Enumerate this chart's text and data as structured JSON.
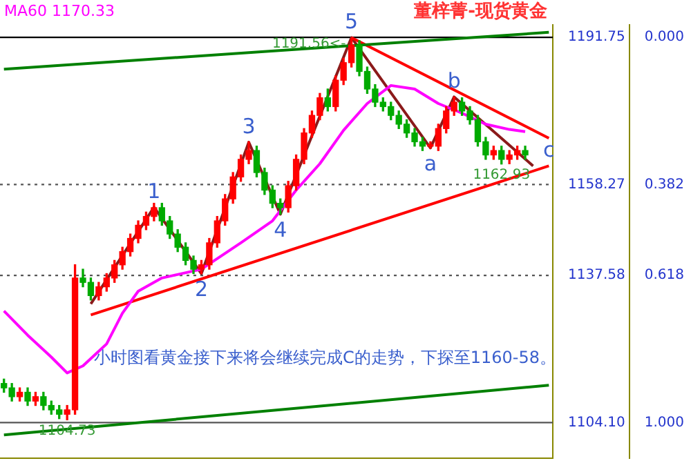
{
  "chart_data": {
    "type": "candlestick",
    "title": "董梓菁-现货黄金",
    "categories": [
      null,
      null,
      null,
      null,
      null,
      null,
      null,
      null,
      null,
      null,
      null,
      null,
      null,
      null,
      null,
      null,
      null,
      null,
      null,
      null,
      null,
      null,
      null,
      null,
      null,
      null,
      null,
      null,
      null,
      null,
      null,
      null,
      null,
      null,
      null,
      null,
      null,
      null,
      null,
      null,
      null,
      null,
      null,
      null,
      null,
      null,
      null,
      null,
      null,
      null,
      null,
      null,
      null,
      null,
      null,
      null,
      null,
      null,
      null,
      null,
      null,
      null,
      null,
      null,
      null,
      null,
      null,
      null,
      null,
      null
    ],
    "ohlc": [
      [
        1113,
        1114,
        1111,
        1112
      ],
      [
        1112,
        1113,
        1109,
        1110
      ],
      [
        1110,
        1112,
        1109,
        1111
      ],
      [
        1111,
        1112,
        1108,
        1109
      ],
      [
        1109,
        1111,
        1108,
        1110
      ],
      [
        1110,
        1111,
        1107,
        1108
      ],
      [
        1108,
        1109,
        1106,
        1107
      ],
      [
        1107,
        1108,
        1105,
        1106
      ],
      [
        1106,
        1108,
        1104.73,
        1107
      ],
      [
        1107,
        1140,
        1106,
        1137
      ],
      [
        1137,
        1139,
        1135,
        1136
      ],
      [
        1136,
        1137,
        1132,
        1133
      ],
      [
        1133,
        1136,
        1132,
        1135
      ],
      [
        1135,
        1138,
        1134,
        1137
      ],
      [
        1137,
        1141,
        1136,
        1140
      ],
      [
        1140,
        1144,
        1139,
        1143
      ],
      [
        1143,
        1147,
        1142,
        1146
      ],
      [
        1146,
        1150,
        1145,
        1149
      ],
      [
        1149,
        1152,
        1148,
        1151
      ],
      [
        1151,
        1154,
        1150,
        1153
      ],
      [
        1153,
        1154,
        1149,
        1150
      ],
      [
        1150,
        1151,
        1146,
        1147
      ],
      [
        1147,
        1148,
        1143,
        1144
      ],
      [
        1144,
        1145,
        1140,
        1141
      ],
      [
        1141,
        1142,
        1138,
        1139
      ],
      [
        1139,
        1141,
        1138,
        1140
      ],
      [
        1140,
        1146,
        1139,
        1145
      ],
      [
        1145,
        1151,
        1144,
        1150
      ],
      [
        1150,
        1156,
        1149,
        1155
      ],
      [
        1155,
        1161,
        1154,
        1160
      ],
      [
        1160,
        1165,
        1159,
        1164
      ],
      [
        1164,
        1168,
        1163,
        1166
      ],
      [
        1166,
        1167,
        1160,
        1161
      ],
      [
        1161,
        1162,
        1156,
        1157
      ],
      [
        1157,
        1158,
        1153,
        1154
      ],
      [
        1154,
        1155,
        1151.5,
        1153
      ],
      [
        1153,
        1159,
        1152,
        1158
      ],
      [
        1158,
        1165,
        1157,
        1164
      ],
      [
        1164,
        1171,
        1163,
        1170
      ],
      [
        1170,
        1175,
        1169,
        1174
      ],
      [
        1174,
        1179,
        1173,
        1178
      ],
      [
        1178,
        1180,
        1175,
        1176
      ],
      [
        1176,
        1183,
        1175,
        1182
      ],
      [
        1182,
        1187,
        1181,
        1186
      ],
      [
        1186,
        1191.56,
        1185,
        1190
      ],
      [
        1190,
        1191,
        1183,
        1184
      ],
      [
        1184,
        1185,
        1179,
        1180
      ],
      [
        1180,
        1181,
        1176,
        1177
      ],
      [
        1177,
        1178,
        1175,
        1176
      ],
      [
        1176,
        1177,
        1173,
        1174
      ],
      [
        1174,
        1175,
        1171,
        1172
      ],
      [
        1172,
        1173,
        1169,
        1170
      ],
      [
        1170,
        1171,
        1167,
        1168
      ],
      [
        1168,
        1169,
        1166,
        1167
      ],
      [
        1167,
        1168,
        1166.5,
        1167
      ],
      [
        1167,
        1172,
        1166,
        1171
      ],
      [
        1171,
        1176,
        1170,
        1175
      ],
      [
        1175,
        1178.2,
        1174,
        1177
      ],
      [
        1177,
        1178,
        1174,
        1175
      ],
      [
        1175,
        1176,
        1172,
        1173
      ],
      [
        1173,
        1174,
        1167,
        1168
      ],
      [
        1168,
        1169,
        1164,
        1165
      ],
      [
        1165,
        1167,
        1164,
        1166
      ],
      [
        1166,
        1167,
        1162.93,
        1164
      ],
      [
        1164,
        1166,
        1163,
        1165
      ],
      [
        1165,
        1167,
        1164,
        1166
      ],
      [
        1166,
        1167,
        1164,
        1165
      ],
      null,
      null,
      null
    ],
    "colors": [
      "#00aa00",
      "#00aa00",
      "#ff0000",
      "#00aa00",
      "#ff0000",
      "#00aa00",
      "#00aa00",
      "#00aa00",
      "#ff0000",
      "#ff0000",
      "#00aa00",
      "#00aa00",
      "#ff0000",
      "#ff0000",
      "#ff0000",
      "#ff0000",
      "#ff0000",
      "#ff0000",
      "#ff0000",
      "#ff0000",
      "#00aa00",
      "#00aa00",
      "#00aa00",
      "#00aa00",
      "#00aa00",
      "#ff0000",
      "#ff0000",
      "#ff0000",
      "#ff0000",
      "#ff0000",
      "#ff0000",
      "#ff0000",
      "#00aa00",
      "#00aa00",
      "#00aa00",
      "#00aa00",
      "#ff0000",
      "#ff0000",
      "#ff0000",
      "#ff0000",
      "#ff0000",
      "#00aa00",
      "#ff0000",
      "#ff0000",
      "#ff0000",
      "#00aa00",
      "#00aa00",
      "#00aa00",
      "#00aa00",
      "#00aa00",
      "#00aa00",
      "#00aa00",
      "#00aa00",
      "#00aa00",
      "#ff0000",
      "#ff0000",
      "#ff0000",
      "#ff0000",
      "#00aa00",
      "#00aa00",
      "#00aa00",
      "#00aa00",
      "#ff0000",
      "#00aa00",
      "#ff0000",
      "#ff0000",
      "#00aa00",
      null,
      null,
      null
    ],
    "value_labels": [
      null,
      null,
      null,
      null,
      null,
      null,
      null,
      null,
      "1104.73",
      null,
      null,
      null,
      null,
      null,
      null,
      null,
      null,
      null,
      null,
      null,
      null,
      null,
      null,
      null,
      null,
      null,
      null,
      null,
      null,
      null,
      null,
      null,
      null,
      null,
      null,
      null,
      null,
      null,
      null,
      null,
      null,
      null,
      null,
      null,
      "1191.56<-",
      null,
      null,
      null,
      null,
      null,
      null,
      null,
      null,
      null,
      null,
      null,
      null,
      null,
      null,
      null,
      null,
      null,
      null,
      "1162.93",
      null,
      null,
      null,
      null,
      null,
      null
    ],
    "series": [
      {
        "type": "line",
        "name": "MA60 1170.33",
        "color": "#ff00ff",
        "values": [
          1129.5,
          null,
          null,
          1124,
          null,
          null,
          1119,
          null,
          1115.4,
          null,
          1117,
          null,
          null,
          1122,
          null,
          1129,
          null,
          1134,
          null,
          null,
          1137,
          null,
          null,
          null,
          null,
          1139,
          null,
          null,
          null,
          null,
          1145,
          null,
          null,
          null,
          1150,
          null,
          null,
          1157,
          null,
          null,
          1163,
          null,
          null,
          1170.6,
          null,
          null,
          1176.7,
          null,
          null,
          1180.8,
          null,
          null,
          1180,
          null,
          null,
          1176.7,
          null,
          null,
          1174.5,
          null,
          null,
          1172,
          null,
          null,
          1170.8,
          null,
          1170.3,
          null,
          null,
          null
        ]
      },
      {
        "type": "line",
        "color": "#008000",
        "values": [
          1184.5,
          null,
          null,
          null,
          null,
          null,
          null,
          null,
          null,
          null,
          null,
          null,
          null,
          null,
          null,
          null,
          null,
          null,
          null,
          null,
          null,
          null,
          null,
          null,
          null,
          null,
          null,
          null,
          null,
          null,
          null,
          null,
          null,
          null,
          null,
          null,
          null,
          null,
          null,
          null,
          null,
          null,
          null,
          null,
          null,
          null,
          null,
          null,
          null,
          null,
          null,
          null,
          null,
          null,
          null,
          null,
          null,
          null,
          null,
          null,
          null,
          null,
          null,
          null,
          null,
          null,
          null,
          null,
          null,
          1192.9
        ]
      },
      {
        "type": "line",
        "color": "#008000",
        "values": [
          1101.3,
          null,
          null,
          null,
          null,
          null,
          null,
          null,
          null,
          null,
          null,
          null,
          null,
          null,
          null,
          null,
          null,
          null,
          null,
          null,
          null,
          null,
          null,
          null,
          null,
          null,
          null,
          null,
          null,
          null,
          null,
          null,
          null,
          null,
          null,
          null,
          null,
          null,
          null,
          null,
          null,
          null,
          null,
          null,
          null,
          null,
          null,
          null,
          null,
          null,
          null,
          null,
          null,
          null,
          null,
          null,
          null,
          null,
          null,
          null,
          null,
          null,
          null,
          null,
          null,
          null,
          null,
          null,
          null,
          1112.6
        ]
      },
      {
        "type": "line",
        "color": "#ff0000",
        "values": [
          null,
          null,
          null,
          null,
          null,
          null,
          null,
          null,
          null,
          null,
          null,
          null,
          null,
          null,
          null,
          null,
          null,
          null,
          null,
          null,
          null,
          null,
          null,
          null,
          null,
          null,
          null,
          null,
          null,
          null,
          null,
          null,
          null,
          null,
          null,
          null,
          null,
          null,
          null,
          null,
          null,
          null,
          null,
          null,
          1191.7,
          null,
          null,
          null,
          null,
          null,
          null,
          null,
          null,
          null,
          null,
          null,
          null,
          null,
          null,
          null,
          null,
          null,
          null,
          null,
          null,
          null,
          null,
          null,
          null,
          1168.8
        ]
      },
      {
        "type": "line",
        "color": "#ff0000",
        "values": [
          null,
          null,
          null,
          null,
          null,
          null,
          null,
          null,
          null,
          null,
          null,
          1128.6,
          null,
          null,
          null,
          null,
          null,
          null,
          null,
          null,
          null,
          null,
          null,
          null,
          null,
          null,
          null,
          null,
          null,
          null,
          null,
          null,
          null,
          null,
          null,
          null,
          null,
          null,
          null,
          null,
          null,
          null,
          null,
          null,
          null,
          null,
          null,
          null,
          null,
          null,
          null,
          null,
          null,
          null,
          null,
          null,
          null,
          null,
          null,
          null,
          null,
          null,
          null,
          null,
          null,
          null,
          null,
          null,
          null,
          1162.5
        ]
      },
      {
        "type": "line",
        "color": "#8b1a1a",
        "values": [
          null,
          null,
          null,
          null,
          null,
          null,
          null,
          null,
          null,
          null,
          null,
          1131.1,
          null,
          null,
          null,
          null,
          null,
          null,
          null,
          1153.1,
          null,
          null,
          null,
          null,
          null,
          1138,
          null,
          null,
          null,
          null,
          null,
          1167.9,
          null,
          null,
          null,
          1151.5,
          null,
          null,
          null,
          null,
          null,
          null,
          null,
          null,
          1191.7,
          null,
          null,
          null,
          null,
          null,
          null,
          null,
          null,
          null,
          1166.6,
          null,
          null,
          1178.2,
          null,
          null,
          null,
          null,
          null,
          null,
          null,
          null,
          null,
          1162.5,
          null,
          null
        ]
      }
    ],
    "ylim": [
      1096,
      1194.6
    ],
    "yticks": [
      1191.75,
      1158.27,
      1137.58,
      {
        "value": 1104.1,
        "label": "1104.10"
      }
    ],
    "y2lim": [
      1.0924,
      -0.0325
    ],
    "y2ticks": [
      {
        "value": 0,
        "label": "0.000"
      },
      0.382,
      0.618,
      {
        "value": 1,
        "label": "1.000"
      }
    ],
    "ref_lines": [
      {
        "axis": "y",
        "value": 1191.75,
        "color": "#000000"
      },
      {
        "axis": "y",
        "value": 1104.1,
        "color": "#555555"
      },
      {
        "axis": "y",
        "value": 1158.27,
        "color": "#555555",
        "line_style": "dotted"
      },
      {
        "axis": "y",
        "value": 1137.58,
        "color": "#555555",
        "line_style": "dotted"
      }
    ],
    "annotations": [
      {
        "text": "1",
        "y": 1153.1
      },
      {
        "text": "2",
        "y": 1138
      },
      {
        "text": "3",
        "y": 1167.9
      },
      {
        "text": "4",
        "y": 1151.5
      },
      {
        "text": "5",
        "y": 1191.7
      },
      {
        "text": "a",
        "y": 1166.6
      },
      {
        "text": "b",
        "y": 1178.2
      },
      {
        "text": "c",
        "y": 1162.5
      },
      "小时图看黄金接下来将会继续完成C的走势，下探至1160-58。"
    ],
    "marker": "none",
    "grid": false
  }
}
